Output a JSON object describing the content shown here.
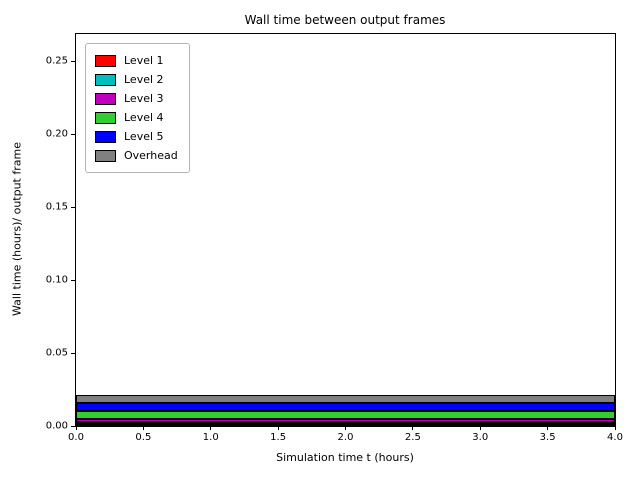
{
  "chart_data": {
    "type": "area",
    "stacked": true,
    "title": "Wall time between output frames",
    "xlabel": "Simulation time t (hours)",
    "ylabel": "Wall time (hours)/ output frame",
    "xlim": [
      0,
      4
    ],
    "ylim": [
      0,
      0.2685
    ],
    "xticks": [
      0.0,
      0.5,
      1.0,
      1.5,
      2.0,
      2.5,
      3.0,
      3.5,
      4.0
    ],
    "xtick_labels": [
      "0.0",
      "0.5",
      "1.0",
      "1.5",
      "2.0",
      "2.5",
      "3.0",
      "3.5",
      "4.0"
    ],
    "yticks": [
      0.0,
      0.05,
      0.1,
      0.15,
      0.2,
      0.25
    ],
    "ytick_labels": [
      "0.00",
      "0.05",
      "0.10",
      "0.15",
      "0.20",
      "0.25"
    ],
    "x": [
      0,
      4
    ],
    "series": [
      {
        "name": "Level 1",
        "color": "#ff0000",
        "values": [
          0.0015,
          0.0015
        ]
      },
      {
        "name": "Level 2",
        "color": "#00bfbf",
        "values": [
          0.0015,
          0.0015
        ]
      },
      {
        "name": "Level 3",
        "color": "#bf00bf",
        "values": [
          0.0015,
          0.0015
        ]
      },
      {
        "name": "Level 4",
        "color": "#32cd32",
        "values": [
          0.0055,
          0.0055
        ]
      },
      {
        "name": "Level 5",
        "color": "#0000ff",
        "values": [
          0.006,
          0.006
        ]
      },
      {
        "name": "Overhead",
        "color": "#808080",
        "values": [
          0.005,
          0.005
        ]
      }
    ],
    "edge_color": "#000000",
    "legend_position": "upper left",
    "grid": false
  }
}
